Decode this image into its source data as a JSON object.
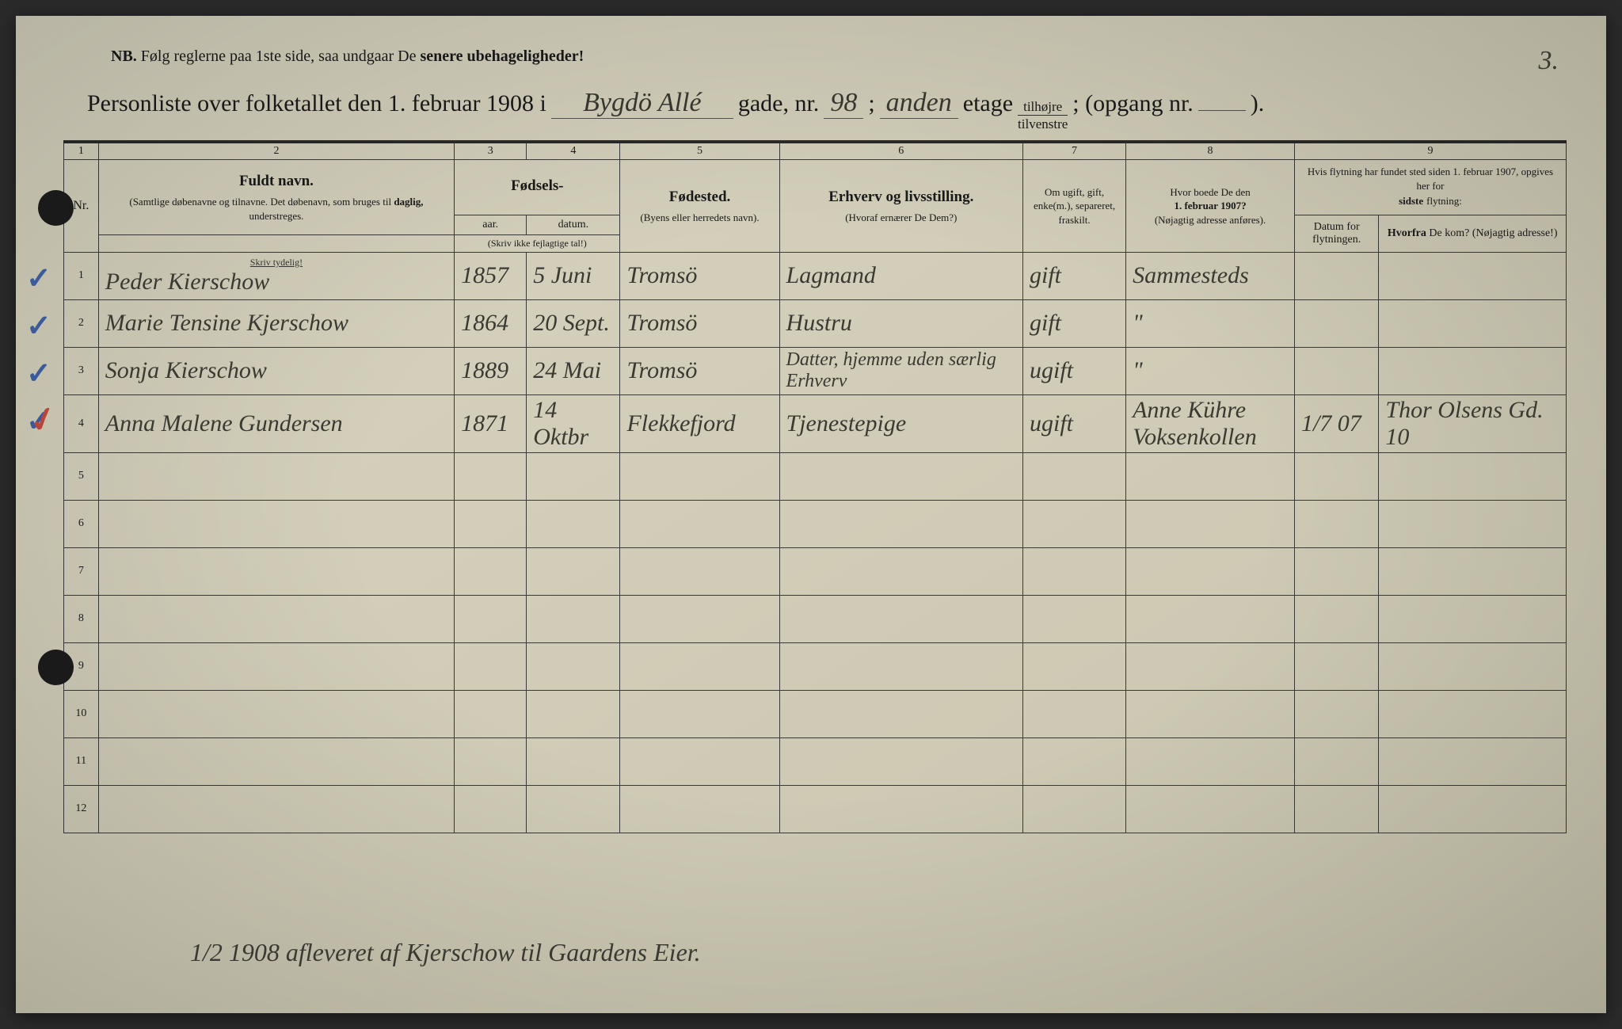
{
  "page_number": "3.",
  "nb": {
    "prefix": "NB.",
    "text": "Følg reglerne paa 1ste side, saa undgaar De",
    "bold_tail": "senere ubehageligheder!"
  },
  "title": {
    "t1": "Personliste over folketallet den 1. februar 1908 i",
    "gade_hw": "Bygdö Allé",
    "t2": "gade, nr.",
    "nr_hw": "98",
    "t3": ";",
    "etage_hw": "anden",
    "t4": "etage",
    "frac_top": "tilhøjre",
    "frac_bot": "tilvenstre",
    "t5": "; (opgang nr.",
    "opgang_hw": "",
    "t6": ")."
  },
  "colnums": [
    "1",
    "2",
    "3",
    "4",
    "5",
    "6",
    "7",
    "8",
    "9"
  ],
  "headers": {
    "nr": "Nr.",
    "name_main": "Fuldt navn.",
    "name_sub1": "(Samtlige døbenavne og tilnavne. Det døbenavn, som bruges til",
    "name_sub_bold": "daglig,",
    "name_sub2": "understreges.",
    "fodsels": "Fødsels-",
    "aar": "aar.",
    "datum": "datum.",
    "fodsels_foot": "(Skriv ikke fejlagtige tal!)",
    "fodested_main": "Fødested.",
    "fodested_sub": "(Byens eller herredets navn).",
    "erhverv_main": "Erhverv og livsstilling.",
    "erhverv_sub": "(Hvoraf ernærer De Dem?)",
    "marital": "Om ugift, gift, enke(m.), separeret, fraskilt.",
    "addr_main": "Hvor boede De den",
    "addr_date": "1. februar 1907?",
    "addr_sub": "(Nøjagtig adresse anføres).",
    "move_main": "Hvis flytning har fundet sted siden 1. februar 1907, opgives her for",
    "move_bold": "sidste",
    "move_tail": "flytning:",
    "move_date": "Datum for flytningen.",
    "move_from_main": "Hvorfra",
    "move_from_sub": "De kom? (Nøjagtig adresse!)"
  },
  "skriv_tydelig": "Skriv tydelig!",
  "rows": [
    {
      "n": "1",
      "check": "blue",
      "name": "Peder Kierschow",
      "year": "1857",
      "date": "5 Juni",
      "bp": "Tromsö",
      "occ": "Lagmand",
      "ms": "gift",
      "addr": "Sammesteds",
      "md": "",
      "from": ""
    },
    {
      "n": "2",
      "check": "blue",
      "name": "Marie Tensine Kjerschow",
      "year": "1864",
      "date": "20 Sept.",
      "bp": "Tromsö",
      "occ": "Hustru",
      "ms": "gift",
      "addr": "\"",
      "md": "",
      "from": ""
    },
    {
      "n": "3",
      "check": "blue",
      "name": "Sonja Kierschow",
      "year": "1889",
      "date": "24 Mai",
      "bp": "Tromsö",
      "occ": "Datter, hjemme uden særlig Erhverv",
      "ms": "ugift",
      "addr": "\"",
      "md": "",
      "from": ""
    },
    {
      "n": "4",
      "check": "both",
      "name": "Anna Malene Gundersen",
      "year": "1871",
      "date": "14 Oktbr",
      "bp": "Flekkefjord",
      "occ": "Tjenestepige",
      "ms": "ugift",
      "addr": "Anne Kühre Voksenkollen",
      "md": "1/7 07",
      "from": "Thor Olsens Gd. 10"
    },
    {
      "n": "5"
    },
    {
      "n": "6"
    },
    {
      "n": "7"
    },
    {
      "n": "8"
    },
    {
      "n": "9"
    },
    {
      "n": "10"
    },
    {
      "n": "11"
    },
    {
      "n": "12"
    }
  ],
  "bottom_note": "1/2 1908 afleveret af Kjerschow til Gaardens Eier."
}
